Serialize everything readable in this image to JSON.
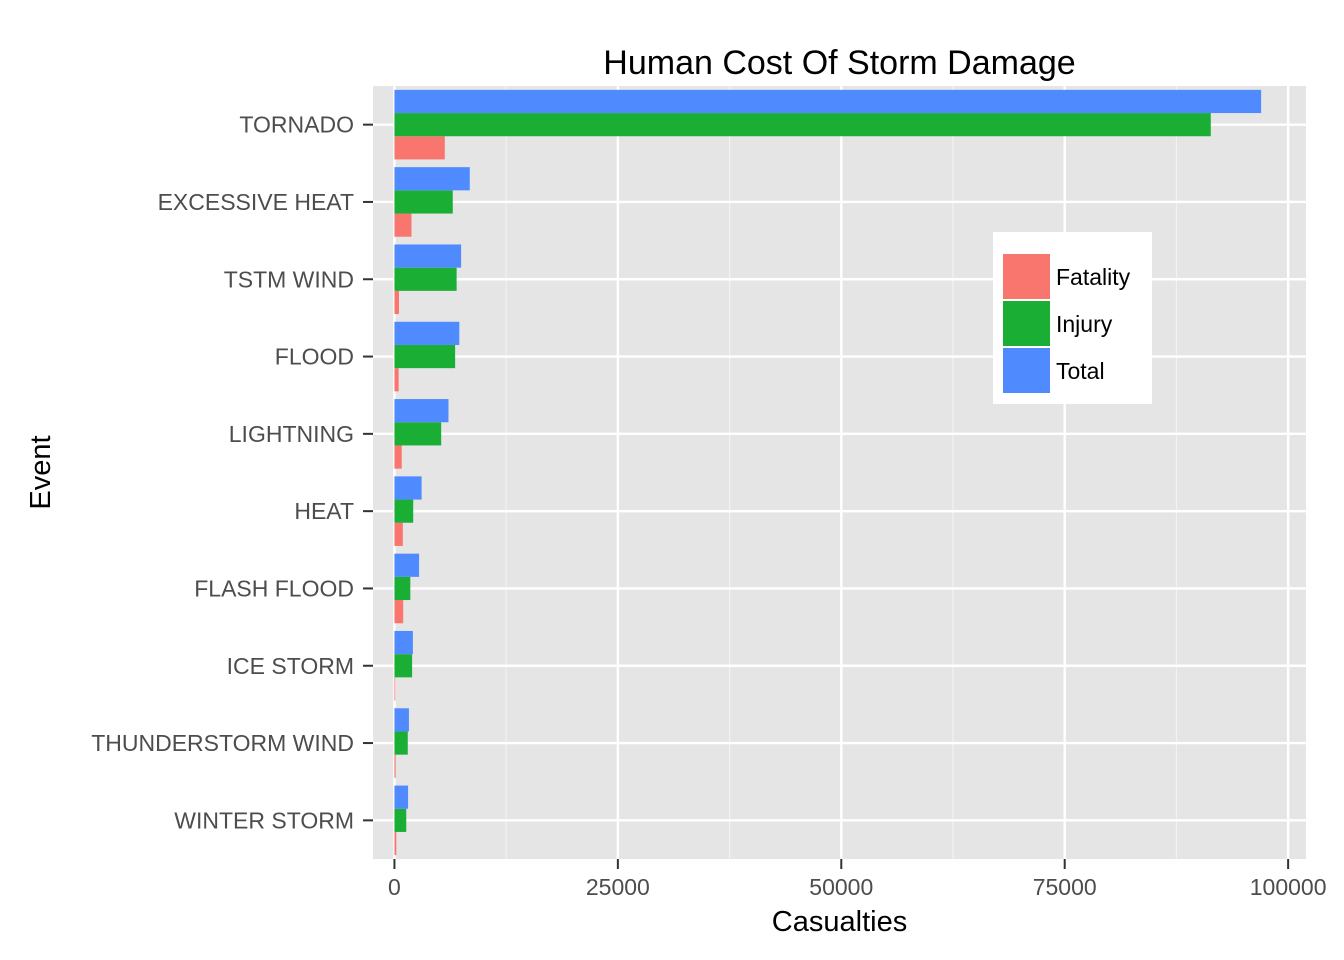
{
  "chart_data": {
    "type": "bar",
    "orientation": "horizontal",
    "title": "Human Cost Of Storm Damage",
    "xlabel": "Casualties",
    "ylabel": "Event",
    "xlim": [
      -2400,
      102000
    ],
    "x_ticks": [
      0,
      25000,
      50000,
      75000,
      100000
    ],
    "x_tick_labels": [
      "0",
      "25000",
      "50000",
      "75000",
      "100000"
    ],
    "grid": true,
    "legend_position": "top-right",
    "categories": [
      "TORNADO",
      "EXCESSIVE HEAT",
      "TSTM WIND",
      "FLOOD",
      "LIGHTNING",
      "HEAT",
      "FLASH FLOOD",
      "ICE STORM",
      "THUNDERSTORM WIND",
      "WINTER STORM"
    ],
    "series": [
      {
        "name": "Fatality",
        "color": "#f8766d",
        "values": [
          5633,
          1903,
          504,
          470,
          816,
          937,
          978,
          89,
          133,
          206
        ]
      },
      {
        "name": "Injury",
        "color": "#1aaf34",
        "values": [
          91346,
          6525,
          6957,
          6789,
          5230,
          2100,
          1777,
          1975,
          1488,
          1321
        ]
      },
      {
        "name": "Total",
        "color": "#4f8afe",
        "values": [
          96979,
          8428,
          7461,
          7259,
          6046,
          3037,
          2755,
          2064,
          1621,
          1527
        ]
      }
    ]
  }
}
